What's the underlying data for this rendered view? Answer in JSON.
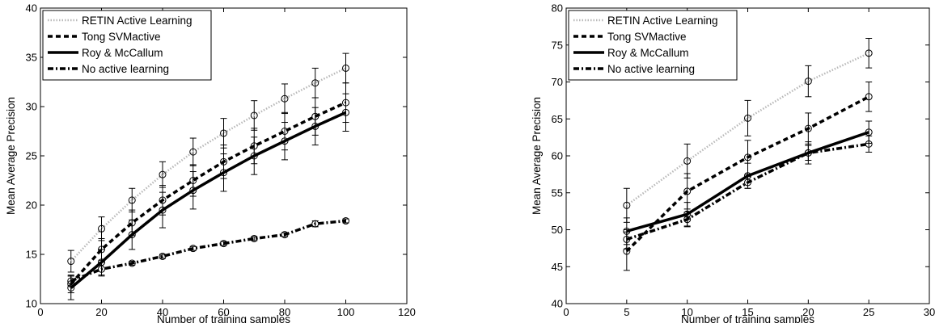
{
  "chart_data": [
    {
      "type": "line",
      "xlabel": "Number of training samples",
      "ylabel": "Mean Average Precision",
      "xlim": [
        0,
        120
      ],
      "ylim": [
        10,
        40
      ],
      "xticks": [
        0,
        20,
        40,
        60,
        80,
        100,
        120
      ],
      "yticks": [
        10,
        15,
        20,
        25,
        30,
        35,
        40
      ],
      "grid": false,
      "legend_position": "top-left",
      "x": [
        10,
        20,
        30,
        40,
        50,
        60,
        70,
        80,
        90,
        100
      ],
      "series": [
        {
          "name": "RETIN Active Learning",
          "style": "dotted",
          "values": [
            14.3,
            17.6,
            20.5,
            23.1,
            25.4,
            27.3,
            29.1,
            30.8,
            32.4,
            33.9
          ],
          "errors": [
            1.1,
            1.2,
            1.2,
            1.3,
            1.4,
            1.5,
            1.5,
            1.5,
            1.5,
            1.5
          ]
        },
        {
          "name": "Tong SVMactive",
          "style": "dashed",
          "values": [
            12.0,
            15.5,
            18.2,
            20.5,
            22.5,
            24.4,
            26.0,
            27.5,
            29.0,
            30.4
          ],
          "errors": [
            0.9,
            1.1,
            1.3,
            1.5,
            1.6,
            1.7,
            1.8,
            1.9,
            1.9,
            2.0
          ]
        },
        {
          "name": "Roy & McCallum",
          "style": "solid",
          "values": [
            11.6,
            14.2,
            17.0,
            19.5,
            21.5,
            23.3,
            25.0,
            26.5,
            28.0,
            29.4
          ],
          "errors": [
            1.2,
            1.3,
            1.5,
            1.8,
            1.9,
            1.9,
            1.9,
            1.9,
            1.9,
            1.9
          ]
        },
        {
          "name": "No active learning",
          "style": "dashdot",
          "values": [
            12.3,
            13.5,
            14.1,
            14.8,
            15.6,
            16.1,
            16.6,
            17.0,
            18.1,
            18.4
          ],
          "errors": [
            0.5,
            0.7,
            0.2,
            0.2,
            0.2,
            0.2,
            0.2,
            0.2,
            0.3,
            0.2
          ]
        }
      ]
    },
    {
      "type": "line",
      "xlabel": "Number of training samples",
      "ylabel": "Mean Average Precision",
      "xlim": [
        0,
        30
      ],
      "ylim": [
        40,
        80
      ],
      "xticks": [
        0,
        5,
        10,
        15,
        20,
        25,
        30
      ],
      "yticks": [
        40,
        45,
        50,
        55,
        60,
        65,
        70,
        75,
        80
      ],
      "grid": false,
      "legend_position": "top-left",
      "x": [
        5,
        10,
        15,
        20,
        25
      ],
      "series": [
        {
          "name": "RETIN Active Learning",
          "style": "dotted",
          "values": [
            53.3,
            59.3,
            65.1,
            70.1,
            73.9
          ],
          "errors": [
            2.3,
            2.3,
            2.4,
            2.1,
            2.0
          ]
        },
        {
          "name": "Tong SVMactive",
          "style": "dashed",
          "values": [
            47.1,
            55.2,
            59.8,
            63.7,
            68.0
          ],
          "errors": [
            2.6,
            2.4,
            2.3,
            2.1,
            2.0
          ]
        },
        {
          "name": "Roy & McCallum",
          "style": "solid",
          "values": [
            49.8,
            52.1,
            57.3,
            60.4,
            63.2
          ],
          "errors": [
            1.8,
            1.6,
            1.7,
            1.5,
            1.5
          ]
        },
        {
          "name": "No active learning",
          "style": "dashdot",
          "values": [
            48.7,
            51.4,
            56.4,
            60.4,
            61.6
          ],
          "errors": [
            1.3,
            1.0,
            0.8,
            1.0,
            1.1
          ]
        }
      ]
    }
  ]
}
